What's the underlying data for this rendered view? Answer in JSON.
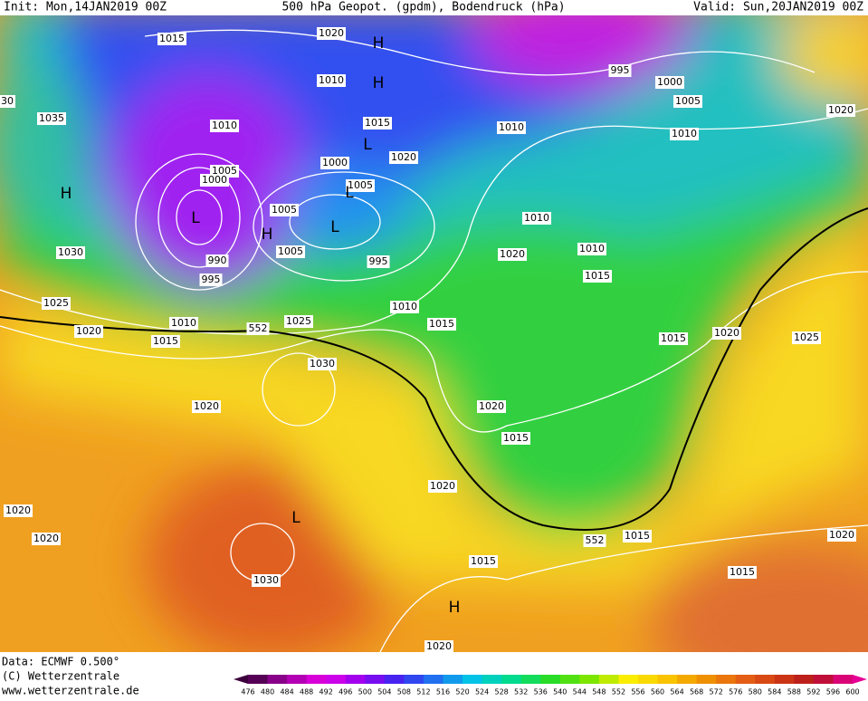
{
  "header": {
    "init": "Init: Mon,14JAN2019 00Z",
    "title": "500 hPa Geopot. (gpdm), Bodendruck (hPa)",
    "valid": "Valid: Sun,20JAN2019 00Z"
  },
  "footer": {
    "data": "Data: ECMWF  0.500°",
    "copyright": "(C) Wetterzentrale",
    "url": "www.wetterzentrale.de"
  },
  "map": {
    "labels": [
      "1015",
      "1020",
      "995",
      "1000",
      "1010",
      "1005",
      "1035",
      "1010",
      "1015",
      "1010",
      "1010",
      "1020",
      "1000",
      "1020",
      "1005",
      "1000",
      "1005",
      "1005",
      "1010",
      "1030",
      "990",
      "1005",
      "995",
      "1020",
      "1010",
      "995",
      "1015",
      "1010",
      "1025",
      "1010",
      "552",
      "1025",
      "1015",
      "1020",
      "1015",
      "1020",
      "1025",
      "1015",
      "1030",
      "1020",
      "1020",
      "1015",
      "1020",
      "1020",
      "1020",
      "552",
      "1015",
      "1020",
      "1015",
      "1015",
      "1030",
      "1020",
      "30"
    ],
    "symbols": [
      "H",
      "H",
      "H",
      "L",
      "L",
      "L",
      "H",
      "L",
      "L",
      "H"
    ]
  },
  "colorbar": {
    "ticks": [
      476,
      480,
      484,
      488,
      492,
      496,
      500,
      504,
      508,
      512,
      516,
      520,
      524,
      528,
      532,
      536,
      540,
      544,
      548,
      552,
      556,
      560,
      564,
      568,
      572,
      576,
      580,
      584,
      588,
      592,
      596,
      600
    ]
  }
}
